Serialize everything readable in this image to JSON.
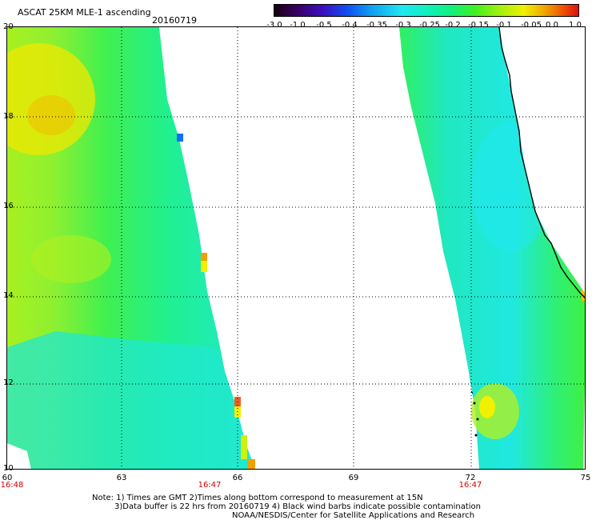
{
  "header": {
    "title": "ASCAT 25KM MLE-1 ascending",
    "date": "20160719"
  },
  "colorbar": {
    "labels": [
      "-3.0",
      "-1.0",
      "-0.5",
      "-0.4",
      "-0.35",
      "-0.3",
      "-0.25",
      "-0.2",
      "-0.15",
      "-0.1",
      "-0.05",
      "0.0",
      "1.0"
    ],
    "colors": [
      "#1a0010",
      "#3a006a",
      "#3a10c0",
      "#1050f0",
      "#10a0f0",
      "#20e8f0",
      "#10f0c0",
      "#10f080",
      "#40f020",
      "#a0f010",
      "#f0f000",
      "#f0b000",
      "#f06000",
      "#e01010"
    ]
  },
  "map": {
    "lat_labels": [
      "20",
      "18",
      "16",
      "14",
      "12",
      "10"
    ],
    "lon_labels": [
      "60",
      "63",
      "66",
      "69",
      "72",
      "75"
    ],
    "time_labels": [
      "16:48",
      "16:47",
      "16:47"
    ],
    "swath_colors": {
      "cyan": "#20e8e0",
      "aqua_green": "#10f0b0",
      "green": "#30f050",
      "yellow_green": "#b0f020",
      "yellow": "#f0f000",
      "orange": "#f0a000"
    }
  },
  "footer": {
    "line1": "Note: 1) Times are GMT 2)Times along bottom correspond to measurement at 15N",
    "line2": "3)Data buffer is 22 hrs from 20160719 4) Black wind barbs indicate possible contamination",
    "line3": "NOAA/NESDIS/Center for Satellite Applications and Research"
  }
}
